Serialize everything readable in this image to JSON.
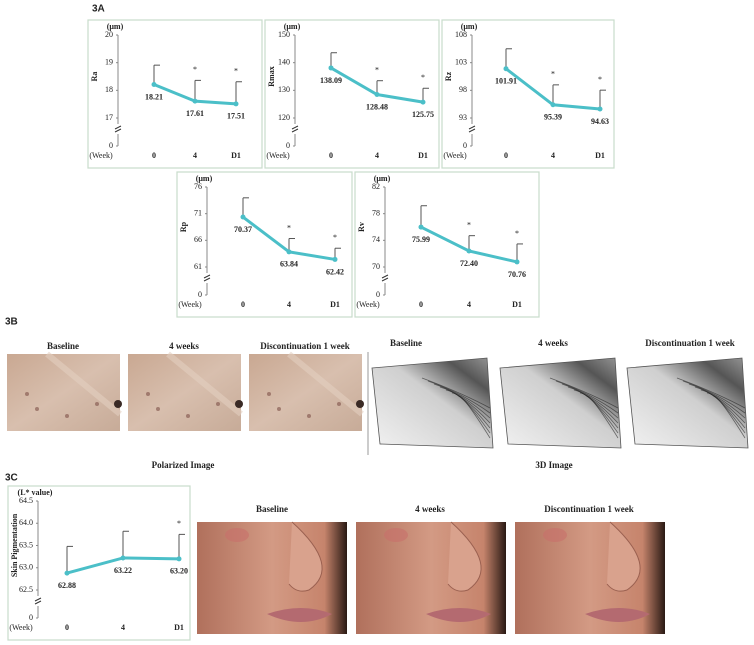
{
  "panel_labels": [
    "3A",
    "3B",
    "3C"
  ],
  "polarized": {
    "captions": [
      "Baseline",
      "4 weeks",
      "Discontinuation 1 week"
    ],
    "title": "Polarized Image"
  },
  "three_d": {
    "captions": [
      "Baseline",
      "4 weeks",
      "Discontinuation 1 week"
    ],
    "title": "3D Image"
  },
  "pigmentation_photos": {
    "captions": [
      "Baseline",
      "4 weeks",
      "Discontinuation 1 week"
    ]
  },
  "chart_data": [
    {
      "type": "line",
      "unit_label": "(μm)",
      "ylabel": "Ra",
      "xlabel": "(Week)",
      "categories": [
        "0",
        "4",
        "D1"
      ],
      "values": [
        18.21,
        17.61,
        17.51
      ],
      "value_labels": [
        "18.21",
        "17.61",
        "17.51"
      ],
      "errors": [
        0.7,
        0.75,
        0.8
      ],
      "significance": [
        null,
        "*",
        "*"
      ],
      "color": "#4bbfc8",
      "ylim": [
        17,
        20
      ],
      "yticks": [
        0,
        17,
        18,
        19,
        20
      ],
      "axis_break": true
    },
    {
      "type": "line",
      "unit_label": "(μm)",
      "ylabel": "Rmax",
      "xlabel": "(Week)",
      "categories": [
        "0",
        "4",
        "D1"
      ],
      "values": [
        138.09,
        128.48,
        125.75
      ],
      "value_labels": [
        "138.09",
        "128.48",
        "125.75"
      ],
      "errors": [
        5.5,
        5,
        5
      ],
      "significance": [
        null,
        "*",
        "*"
      ],
      "color": "#4bbfc8",
      "ylim": [
        120,
        150
      ],
      "yticks": [
        0,
        120,
        130,
        140,
        150
      ],
      "axis_break": true
    },
    {
      "type": "line",
      "unit_label": "(μm)",
      "ylabel": "Rz",
      "xlabel": "(Week)",
      "categories": [
        "0",
        "4",
        "D1"
      ],
      "values": [
        101.91,
        95.39,
        94.63
      ],
      "value_labels": [
        "101.91",
        "95.39",
        "94.63"
      ],
      "errors": [
        3.6,
        3.6,
        3.4
      ],
      "significance": [
        null,
        "*",
        "*"
      ],
      "color": "#4bbfc8",
      "ylim": [
        93,
        108
      ],
      "yticks": [
        0,
        93,
        98,
        103,
        108
      ],
      "axis_break": true
    },
    {
      "type": "line",
      "unit_label": "(μm)",
      "ylabel": "Rp",
      "xlabel": "(Week)",
      "categories": [
        "0",
        "4",
        "D1"
      ],
      "values": [
        70.37,
        63.84,
        62.42
      ],
      "value_labels": [
        "70.37",
        "63.84",
        "62.42"
      ],
      "errors": [
        3.6,
        2.5,
        2.1
      ],
      "significance": [
        null,
        "*",
        "*"
      ],
      "color": "#4bbfc8",
      "ylim": [
        61,
        76
      ],
      "yticks": [
        0,
        61,
        66,
        71,
        76
      ],
      "axis_break": true
    },
    {
      "type": "line",
      "unit_label": "(μm)",
      "ylabel": "Rv",
      "xlabel": "(Week)",
      "categories": [
        "0",
        "4",
        "D1"
      ],
      "values": [
        75.99,
        72.4,
        70.76
      ],
      "value_labels": [
        "75.99",
        "72.40",
        "70.76"
      ],
      "errors": [
        3.2,
        2.3,
        2.7
      ],
      "significance": [
        null,
        "*",
        "*"
      ],
      "color": "#4bbfc8",
      "ylim": [
        70,
        82
      ],
      "yticks": [
        0,
        70,
        74,
        78,
        82
      ],
      "axis_break": true
    },
    {
      "type": "line",
      "unit_label": "(L* value)",
      "ylabel": "Skin Pigmentation",
      "xlabel": "(Week)",
      "categories": [
        "0",
        "4",
        "D1"
      ],
      "values": [
        62.88,
        63.22,
        63.2
      ],
      "value_labels": [
        "62.88",
        "63.22",
        "63.20"
      ],
      "errors": [
        0.6,
        0.6,
        0.55
      ],
      "significance": [
        null,
        null,
        "*"
      ],
      "color": "#4bbfc8",
      "ylim": [
        62.5,
        64.5
      ],
      "yticks": [
        0,
        62.5,
        {
          "value": 63,
          "label": "63.0"
        },
        63.5,
        {
          "value": 64,
          "label": "64.0"
        },
        64.5
      ],
      "axis_break": true
    }
  ]
}
